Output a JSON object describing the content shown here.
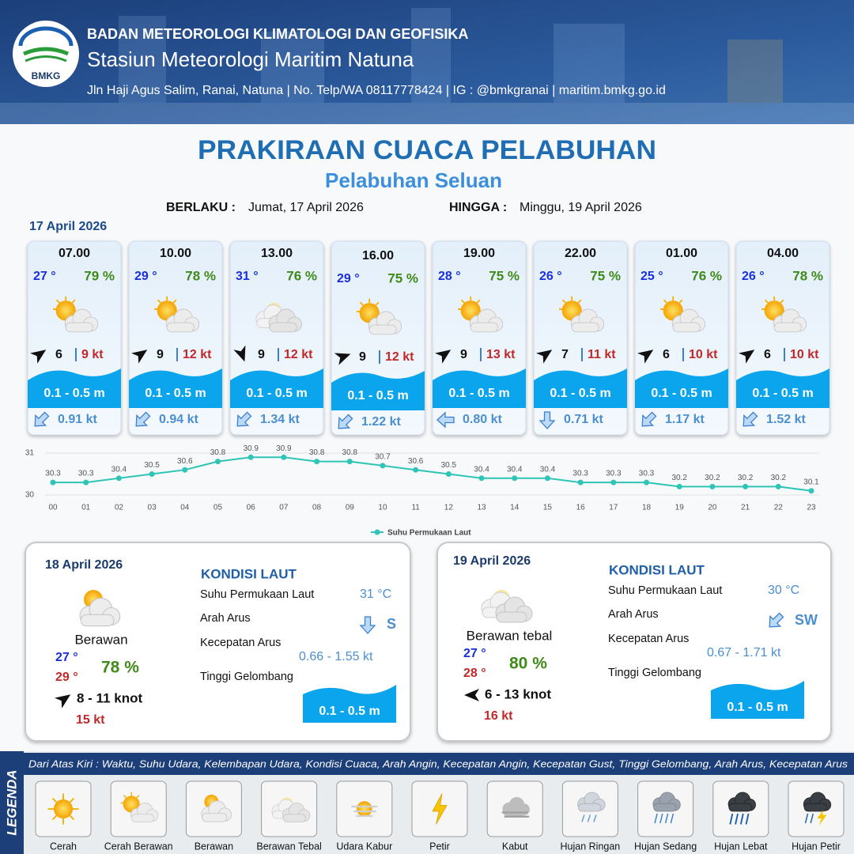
{
  "header": {
    "logo": "BMKG",
    "agency": "BADAN METEOROLOGI KLIMATOLOGI DAN GEOFISIKA",
    "station": "Stasiun Meteorologi Maritim Natuna",
    "address": "Jln Haji Agus Salim, Ranai, Natuna  | No. Telp/WA 08117778424 | IG : @bmkgranai | maritim.bmkg.go.id"
  },
  "title": "PRAKIRAAN CUACA PELABUHAN",
  "subtitle": "Pelabuhan Seluan",
  "validity": {
    "from_label": "BERLAKU :",
    "from": "Jumat, 17 April 2026",
    "to_label": "HINGGA :",
    "to": "Minggu, 19 April 2026"
  },
  "day1_date": "17 April 2026",
  "forecasts": [
    {
      "time": "07.00",
      "temp": "27 °",
      "humidity": "79 %",
      "wind": "6",
      "gust": "9 kt",
      "wave": "0.1 - 0.5 m",
      "current": "0.91 kt"
    },
    {
      "time": "10.00",
      "temp": "29 °",
      "humidity": "78 %",
      "wind": "9",
      "gust": "12 kt",
      "wave": "0.1 - 0.5 m",
      "current": "0.94 kt"
    },
    {
      "time": "13.00",
      "temp": "31 °",
      "humidity": "76 %",
      "wind": "9",
      "gust": "12 kt",
      "wave": "0.1 - 0.5 m",
      "current": "1.34 kt"
    },
    {
      "time": "16.00",
      "temp": "29 °",
      "humidity": "75 %",
      "wind": "9",
      "gust": "12 kt",
      "wave": "0.1 - 0.5 m",
      "current": "1.22 kt"
    },
    {
      "time": "19.00",
      "temp": "28 °",
      "humidity": "75 %",
      "wind": "9",
      "gust": "13 kt",
      "wave": "0.1 - 0.5 m",
      "current": "0.80 kt"
    },
    {
      "time": "22.00",
      "temp": "26 °",
      "humidity": "75 %",
      "wind": "7",
      "gust": "11 kt",
      "wave": "0.1 - 0.5 m",
      "current": "0.71 kt"
    },
    {
      "time": "01.00",
      "temp": "25 °",
      "humidity": "76 %",
      "wind": "6",
      "gust": "10 kt",
      "wave": "0.1 - 0.5 m",
      "current": "1.17 kt"
    },
    {
      "time": "04.00",
      "temp": "26 °",
      "humidity": "78 %",
      "wind": "6",
      "gust": "10 kt",
      "wave": "0.1 - 0.5 m",
      "current": "1.52 kt"
    }
  ],
  "chart_data": {
    "type": "line",
    "categories": [
      "00",
      "01",
      "02",
      "03",
      "04",
      "05",
      "06",
      "07",
      "08",
      "09",
      "10",
      "11",
      "12",
      "13",
      "14",
      "15",
      "16",
      "17",
      "18",
      "19",
      "20",
      "21",
      "22",
      "23"
    ],
    "series": [
      {
        "name": "Suhu Permukaan Laut",
        "color": "#2ec4b6",
        "values": [
          30.3,
          30.3,
          30.4,
          30.5,
          30.6,
          30.8,
          30.9,
          30.9,
          30.8,
          30.8,
          30.7,
          30.6,
          30.5,
          30.4,
          30.4,
          30.4,
          30.3,
          30.3,
          30.3,
          30.2,
          30.2,
          30.2,
          30.2,
          30.1
        ]
      }
    ],
    "ylim": [
      30,
      31
    ],
    "yticks": [
      30,
      31
    ],
    "grid": true,
    "legend": "bottom"
  },
  "days": [
    {
      "date": "18 April 2026",
      "condition": "Berawan",
      "temp_min": "27 °",
      "temp_max": "29 °",
      "humidity": "78 %",
      "wind": "8  - 11 knot",
      "gust": "15 kt",
      "sea_title": "KONDISI LAUT",
      "sst_label": "Suhu Permukaan Laut",
      "sst": "31 °C",
      "dir_label": "Arah Arus",
      "dir": "S",
      "speed_label": "Kecepatan Arus",
      "speed": "0.66  - 1.55 kt",
      "wave_label": "Tinggi Gelombang",
      "wave": "0.1 - 0.5 m"
    },
    {
      "date": "19 April 2026",
      "condition": "Berawan tebal",
      "temp_min": "27 °",
      "temp_max": "28 °",
      "humidity": "80 %",
      "wind": "6  - 13 knot",
      "gust": "16 kt",
      "sea_title": "KONDISI LAUT",
      "sst_label": "Suhu Permukaan Laut",
      "sst": "30 °C",
      "dir_label": "Arah Arus",
      "dir": "SW",
      "speed_label": "Kecepatan Arus",
      "speed": "0.67 - 1.71 kt",
      "wave_label": "Tinggi Gelombang",
      "wave": "0.1 - 0.5 m"
    }
  ],
  "legend": {
    "title": "LEGENDA",
    "description": "Dari Atas Kiri : Waktu, Suhu Udara, Kelembapan Udara, Kondisi Cuaca, Arah Angin, Kecepatan Angin, Kecepatan Gust, Tinggi Gelombang, Arah Arus, Kecepatan Arus",
    "items": [
      "Cerah",
      "Cerah Berawan",
      "Berawan",
      "Berawan Tebal",
      "Udara Kabur",
      "Petir",
      "Kabut",
      "Hujan Ringan",
      "Hujan Sedang",
      "Hujan Lebat",
      "Hujan Petir"
    ]
  }
}
